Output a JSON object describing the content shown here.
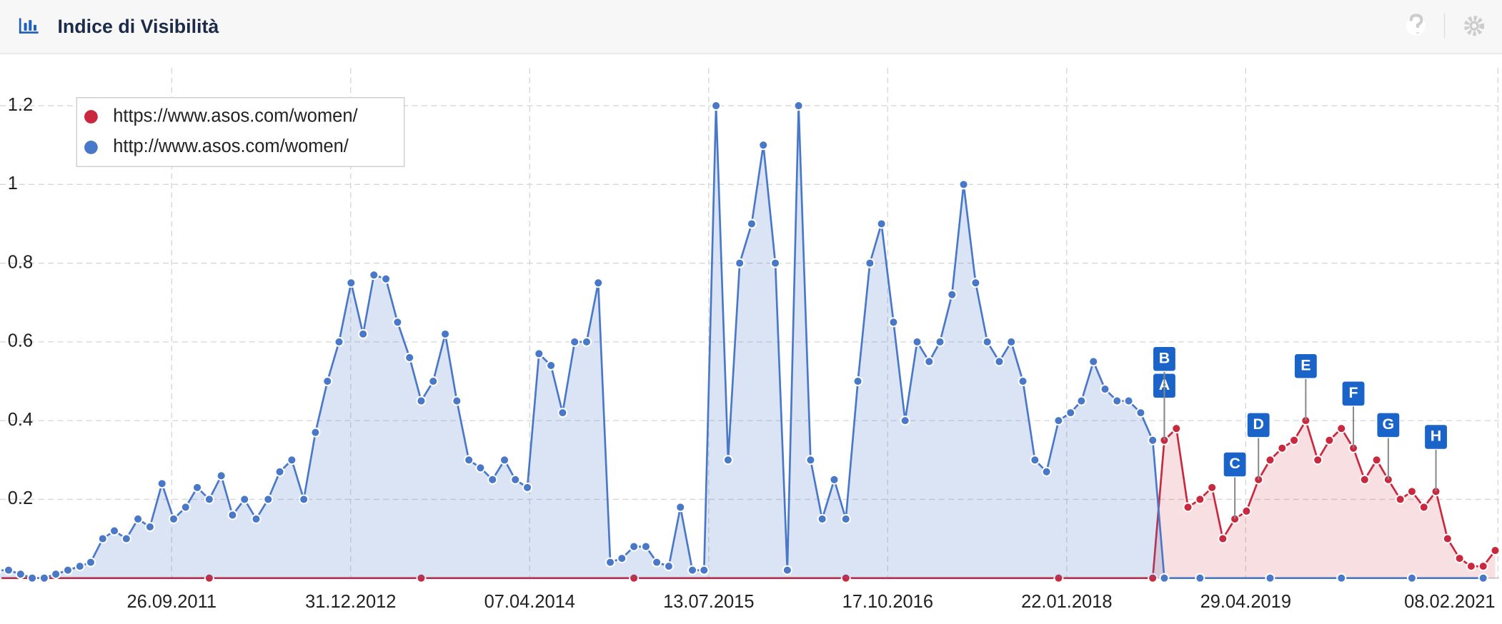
{
  "header": {
    "title": "Indice di Visibilità"
  },
  "chart_data": {
    "type": "line",
    "xlim": [
      "2010-07-10",
      "2021-02-11"
    ],
    "ylim": [
      0,
      1.33
    ],
    "xticks": [
      {
        "value": "2011-09-26",
        "label": "26.09.2011"
      },
      {
        "value": "2012-12-31",
        "label": "31.12.2012"
      },
      {
        "value": "2014-04-07",
        "label": "07.04.2014"
      },
      {
        "value": "2015-07-13",
        "label": "13.07.2015"
      },
      {
        "value": "2016-10-17",
        "label": "17.10.2016"
      },
      {
        "value": "2018-01-22",
        "label": "22.01.2018"
      },
      {
        "value": "2019-04-29",
        "label": "29.04.2019"
      },
      {
        "value": "2021-02-08",
        "label": "08.02.2021"
      }
    ],
    "yticks": [
      0.2,
      0.4,
      0.6,
      0.8,
      1,
      1.2
    ],
    "grid": true,
    "legend": "top-left",
    "series": [
      {
        "name": "https://www.asos.com/women/",
        "color": "#c9283e",
        "x": [
          "2010-07-01",
          "2012-01-01",
          "2013-07-01",
          "2015-01-01",
          "2016-07-01",
          "2018-01-01",
          "2018-09-01",
          "2018-10-01",
          "2018-11-01",
          "2018-12-01",
          "2019-01-01",
          "2019-02-01",
          "2019-03-01",
          "2019-04-01",
          "2019-05-01",
          "2019-06-01",
          "2019-07-01",
          "2019-08-01",
          "2019-09-01",
          "2019-10-01",
          "2019-11-01",
          "2019-12-01",
          "2020-01-01",
          "2020-02-01",
          "2020-03-01",
          "2020-04-01",
          "2020-05-01",
          "2020-06-01",
          "2020-07-01",
          "2020-08-01",
          "2020-09-01",
          "2020-10-01",
          "2020-11-01",
          "2020-12-01",
          "2021-01-01",
          "2021-02-01"
        ],
        "values": [
          0,
          0,
          0,
          0,
          0,
          0,
          0,
          0.35,
          0.38,
          0.18,
          0.2,
          0.23,
          0.1,
          0.15,
          0.17,
          0.25,
          0.3,
          0.33,
          0.35,
          0.4,
          0.3,
          0.35,
          0.38,
          0.33,
          0.25,
          0.3,
          0.25,
          0.2,
          0.22,
          0.18,
          0.22,
          0.1,
          0.05,
          0.03,
          0.03,
          0.07
        ]
      },
      {
        "name": "http://www.asos.com/women/",
        "color": "#4a78c8",
        "x": [
          "2010-07-01",
          "2010-08-01",
          "2010-09-01",
          "2010-10-01",
          "2010-11-01",
          "2010-12-01",
          "2011-01-01",
          "2011-02-01",
          "2011-03-01",
          "2011-04-01",
          "2011-05-01",
          "2011-06-01",
          "2011-07-01",
          "2011-08-01",
          "2011-09-01",
          "2011-10-01",
          "2011-11-01",
          "2011-12-01",
          "2012-01-01",
          "2012-02-01",
          "2012-03-01",
          "2012-04-01",
          "2012-05-01",
          "2012-06-01",
          "2012-07-01",
          "2012-08-01",
          "2012-09-01",
          "2012-10-01",
          "2012-11-01",
          "2012-12-01",
          "2013-01-01",
          "2013-02-01",
          "2013-03-01",
          "2013-04-01",
          "2013-05-01",
          "2013-06-01",
          "2013-07-01",
          "2013-08-01",
          "2013-09-01",
          "2013-10-01",
          "2013-11-01",
          "2013-12-01",
          "2014-01-01",
          "2014-02-01",
          "2014-03-01",
          "2014-04-01",
          "2014-05-01",
          "2014-06-01",
          "2014-07-01",
          "2014-08-01",
          "2014-09-01",
          "2014-10-01",
          "2014-11-01",
          "2014-12-01",
          "2015-01-01",
          "2015-02-01",
          "2015-03-01",
          "2015-04-01",
          "2015-05-01",
          "2015-06-01",
          "2015-07-01",
          "2015-08-01",
          "2015-09-01",
          "2015-10-01",
          "2015-11-01",
          "2015-12-01",
          "2016-01-01",
          "2016-02-01",
          "2016-03-01",
          "2016-04-01",
          "2016-05-01",
          "2016-06-01",
          "2016-07-01",
          "2016-08-01",
          "2016-09-01",
          "2016-10-01",
          "2016-11-01",
          "2016-12-01",
          "2017-01-01",
          "2017-02-01",
          "2017-03-01",
          "2017-04-01",
          "2017-05-01",
          "2017-06-01",
          "2017-07-01",
          "2017-08-01",
          "2017-09-01",
          "2017-10-01",
          "2017-11-01",
          "2017-12-01",
          "2018-01-01",
          "2018-02-01",
          "2018-03-01",
          "2018-04-01",
          "2018-05-01",
          "2018-06-01",
          "2018-07-01",
          "2018-08-01",
          "2018-09-01",
          "2018-10-01",
          "2019-01-01",
          "2019-07-01",
          "2020-01-01",
          "2020-07-01",
          "2021-01-01"
        ],
        "values": [
          0.02,
          0.02,
          0.01,
          0,
          0,
          0.01,
          0.02,
          0.03,
          0.04,
          0.1,
          0.12,
          0.1,
          0.15,
          0.13,
          0.24,
          0.15,
          0.18,
          0.23,
          0.2,
          0.26,
          0.16,
          0.2,
          0.15,
          0.2,
          0.27,
          0.3,
          0.2,
          0.37,
          0.5,
          0.6,
          0.75,
          0.62,
          0.77,
          0.76,
          0.65,
          0.56,
          0.45,
          0.5,
          0.62,
          0.45,
          0.3,
          0.28,
          0.25,
          0.3,
          0.25,
          0.23,
          0.57,
          0.54,
          0.42,
          0.6,
          0.6,
          0.75,
          0.04,
          0.05,
          0.08,
          0.08,
          0.04,
          0.03,
          0.18,
          0.02,
          0.02,
          1.2,
          0.3,
          0.8,
          0.9,
          1.1,
          0.8,
          0.02,
          1.2,
          0.3,
          0.15,
          0.25,
          0.15,
          0.5,
          0.8,
          0.9,
          0.65,
          0.4,
          0.6,
          0.55,
          0.6,
          0.72,
          1.0,
          0.75,
          0.6,
          0.55,
          0.6,
          0.5,
          0.3,
          0.27,
          0.4,
          0.42,
          0.45,
          0.55,
          0.48,
          0.45,
          0.45,
          0.42,
          0.35,
          0,
          0,
          0,
          0,
          0,
          0
        ]
      }
    ],
    "annotations": [
      {
        "label": "A",
        "x": "2018-10-01"
      },
      {
        "label": "B",
        "x": "2018-10-01"
      },
      {
        "label": "C",
        "x": "2019-04-01"
      },
      {
        "label": "D",
        "x": "2019-06-01"
      },
      {
        "label": "E",
        "x": "2019-10-01"
      },
      {
        "label": "F",
        "x": "2020-02-01"
      },
      {
        "label": "G",
        "x": "2020-05-01"
      },
      {
        "label": "H",
        "x": "2020-09-01"
      }
    ]
  }
}
